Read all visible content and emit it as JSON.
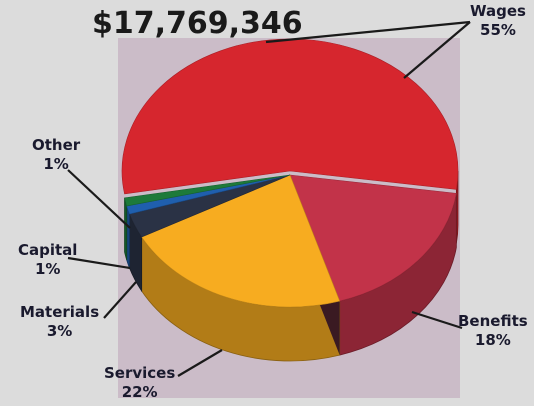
{
  "total_label": "$17,769,346",
  "colors": {
    "background": "#dcdcdc",
    "plot_area": "#cbbcc8",
    "Wages": "#d6262e",
    "Benefits": "#c23349",
    "Services": "#f7ac20",
    "Materials": "#2a3245",
    "Capital": "#1f5fae",
    "Other": "#1d7a3a"
  },
  "chart_data": {
    "type": "pie",
    "style": "3d-exploded-wedge",
    "title": "$17,769,346",
    "legend": "none",
    "slices": [
      {
        "name": "Wages",
        "pct_label": "55%",
        "value": 55
      },
      {
        "name": "Benefits",
        "pct_label": "18%",
        "value": 18
      },
      {
        "name": "Services",
        "pct_label": "22%",
        "value": 22
      },
      {
        "name": "Materials",
        "pct_label": "3%",
        "value": 3
      },
      {
        "name": "Capital",
        "pct_label": "1%",
        "value": 1
      },
      {
        "name": "Other",
        "pct_label": "1%",
        "value": 1
      }
    ]
  }
}
